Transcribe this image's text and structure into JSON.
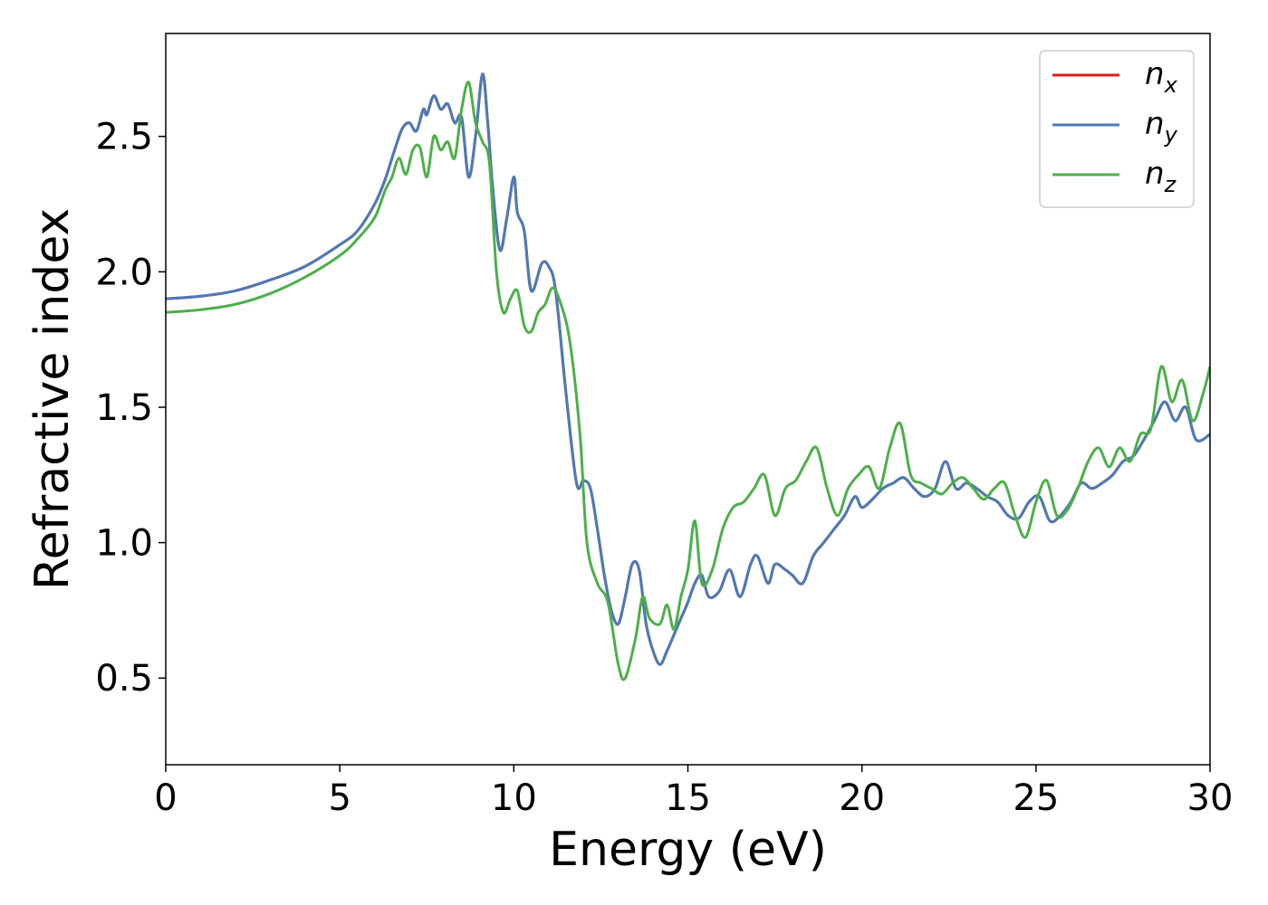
{
  "chart_data": {
    "type": "line",
    "title": "",
    "xlabel": "Energy (eV)",
    "ylabel": "Refractive index",
    "xlim": [
      0,
      30
    ],
    "ylim": [
      0.18,
      2.88
    ],
    "xticks": [
      0,
      5,
      10,
      15,
      20,
      25,
      30
    ],
    "xtick_labels": [
      "0",
      "5",
      "10",
      "15",
      "20",
      "25",
      "30"
    ],
    "yticks": [
      0.5,
      1.0,
      1.5,
      2.0,
      2.5
    ],
    "ytick_labels": [
      "0.5",
      "1.0",
      "1.5",
      "2.0",
      "2.5"
    ],
    "grid": false,
    "legend_position": "top-right",
    "series": [
      {
        "name": "n",
        "subscript": "x",
        "color": "#e41a1c",
        "x": [
          0,
          1,
          2,
          3,
          4,
          5,
          5.5,
          6,
          6.3,
          6.6,
          6.8,
          7,
          7.2,
          7.4,
          7.5,
          7.7,
          7.9,
          8.1,
          8.3,
          8.5,
          8.7,
          8.9,
          9.1,
          9.25,
          9.4,
          9.6,
          9.8,
          10,
          10.1,
          10.3,
          10.5,
          10.8,
          11,
          11.2,
          11.5,
          11.8,
          12,
          12.2,
          12.4,
          12.6,
          12.8,
          13,
          13.2,
          13.4,
          13.6,
          13.8,
          14,
          14.2,
          14.4,
          14.6,
          14.8,
          15,
          15.2,
          15.4,
          15.6,
          15.9,
          16.2,
          16.5,
          16.8,
          17,
          17.3,
          17.5,
          17.8,
          18,
          18.3,
          18.6,
          18.9,
          19.2,
          19.5,
          19.8,
          20,
          20.3,
          20.6,
          20.9,
          21.2,
          21.5,
          21.8,
          22.1,
          22.4,
          22.7,
          23,
          23.3,
          23.6,
          23.9,
          24.2,
          24.5,
          24.8,
          25.1,
          25.4,
          25.7,
          26,
          26.3,
          26.6,
          26.9,
          27.2,
          27.5,
          27.8,
          28.1,
          28.4,
          28.7,
          29,
          29.3,
          29.6,
          30
        ],
        "y": [
          1.9,
          1.91,
          1.93,
          1.97,
          2.02,
          2.1,
          2.15,
          2.25,
          2.34,
          2.46,
          2.53,
          2.55,
          2.52,
          2.6,
          2.58,
          2.65,
          2.6,
          2.62,
          2.55,
          2.57,
          2.35,
          2.5,
          2.73,
          2.55,
          2.3,
          2.08,
          2.2,
          2.35,
          2.22,
          2.15,
          1.93,
          2.03,
          2.02,
          1.93,
          1.55,
          1.22,
          1.23,
          1.2,
          1.05,
          0.88,
          0.75,
          0.7,
          0.8,
          0.92,
          0.9,
          0.7,
          0.6,
          0.55,
          0.6,
          0.66,
          0.72,
          0.78,
          0.85,
          0.88,
          0.8,
          0.82,
          0.9,
          0.8,
          0.92,
          0.95,
          0.85,
          0.92,
          0.9,
          0.88,
          0.85,
          0.95,
          1.0,
          1.05,
          1.1,
          1.17,
          1.13,
          1.16,
          1.2,
          1.22,
          1.24,
          1.2,
          1.17,
          1.2,
          1.3,
          1.2,
          1.22,
          1.2,
          1.17,
          1.15,
          1.1,
          1.09,
          1.15,
          1.17,
          1.08,
          1.1,
          1.15,
          1.22,
          1.2,
          1.22,
          1.25,
          1.3,
          1.32,
          1.38,
          1.45,
          1.52,
          1.45,
          1.5,
          1.38,
          1.4
        ],
        "line_width": 3
      },
      {
        "name": "n",
        "subscript": "y",
        "color": "#4a7bb7",
        "x": [
          0,
          1,
          2,
          3,
          4,
          5,
          5.5,
          6,
          6.3,
          6.6,
          6.8,
          7,
          7.2,
          7.4,
          7.5,
          7.7,
          7.9,
          8.1,
          8.3,
          8.5,
          8.7,
          8.9,
          9.1,
          9.25,
          9.4,
          9.6,
          9.8,
          10,
          10.1,
          10.3,
          10.5,
          10.8,
          11,
          11.2,
          11.5,
          11.8,
          12,
          12.2,
          12.4,
          12.6,
          12.8,
          13,
          13.2,
          13.4,
          13.6,
          13.8,
          14,
          14.2,
          14.4,
          14.6,
          14.8,
          15,
          15.2,
          15.4,
          15.6,
          15.9,
          16.2,
          16.5,
          16.8,
          17,
          17.3,
          17.5,
          17.8,
          18,
          18.3,
          18.6,
          18.9,
          19.2,
          19.5,
          19.8,
          20,
          20.3,
          20.6,
          20.9,
          21.2,
          21.5,
          21.8,
          22.1,
          22.4,
          22.7,
          23,
          23.3,
          23.6,
          23.9,
          24.2,
          24.5,
          24.8,
          25.1,
          25.4,
          25.7,
          26,
          26.3,
          26.6,
          26.9,
          27.2,
          27.5,
          27.8,
          28.1,
          28.4,
          28.7,
          29,
          29.3,
          29.6,
          30
        ],
        "y": [
          1.9,
          1.91,
          1.93,
          1.97,
          2.02,
          2.1,
          2.15,
          2.25,
          2.34,
          2.46,
          2.53,
          2.55,
          2.52,
          2.6,
          2.58,
          2.65,
          2.6,
          2.62,
          2.55,
          2.57,
          2.35,
          2.5,
          2.73,
          2.55,
          2.3,
          2.08,
          2.2,
          2.35,
          2.22,
          2.15,
          1.93,
          2.03,
          2.02,
          1.93,
          1.55,
          1.22,
          1.23,
          1.2,
          1.05,
          0.88,
          0.75,
          0.7,
          0.8,
          0.92,
          0.9,
          0.7,
          0.6,
          0.55,
          0.6,
          0.66,
          0.72,
          0.78,
          0.85,
          0.88,
          0.8,
          0.82,
          0.9,
          0.8,
          0.92,
          0.95,
          0.85,
          0.92,
          0.9,
          0.88,
          0.85,
          0.95,
          1.0,
          1.05,
          1.1,
          1.17,
          1.13,
          1.16,
          1.2,
          1.22,
          1.24,
          1.2,
          1.17,
          1.2,
          1.3,
          1.2,
          1.22,
          1.2,
          1.17,
          1.15,
          1.1,
          1.09,
          1.15,
          1.17,
          1.08,
          1.1,
          1.15,
          1.22,
          1.2,
          1.22,
          1.25,
          1.3,
          1.32,
          1.38,
          1.45,
          1.52,
          1.45,
          1.5,
          1.38,
          1.4
        ],
        "line_width": 3
      },
      {
        "name": "n",
        "subscript": "z",
        "color": "#4daf4a",
        "x": [
          0,
          1,
          2,
          3,
          4,
          5,
          5.5,
          6,
          6.3,
          6.5,
          6.7,
          6.9,
          7.1,
          7.3,
          7.5,
          7.7,
          7.9,
          8.1,
          8.3,
          8.5,
          8.7,
          8.9,
          9.1,
          9.3,
          9.5,
          9.7,
          9.9,
          10.1,
          10.3,
          10.5,
          10.7,
          10.9,
          11.1,
          11.3,
          11.6,
          11.9,
          12.1,
          12.4,
          12.7,
          13,
          13.2,
          13.5,
          13.7,
          13.9,
          14.2,
          14.4,
          14.6,
          14.8,
          15,
          15.2,
          15.4,
          15.7,
          16,
          16.3,
          16.6,
          16.9,
          17.2,
          17.5,
          17.8,
          18.1,
          18.4,
          18.7,
          19,
          19.3,
          19.6,
          19.9,
          20.2,
          20.5,
          20.8,
          21.1,
          21.4,
          21.7,
          22,
          22.3,
          22.6,
          22.9,
          23.2,
          23.5,
          23.8,
          24.1,
          24.4,
          24.7,
          25,
          25.3,
          25.6,
          25.9,
          26.2,
          26.5,
          26.8,
          27.1,
          27.4,
          27.7,
          28,
          28.3,
          28.6,
          28.9,
          29.2,
          29.5,
          29.8,
          30
        ],
        "y": [
          1.85,
          1.86,
          1.88,
          1.92,
          1.98,
          2.06,
          2.12,
          2.2,
          2.3,
          2.35,
          2.42,
          2.36,
          2.45,
          2.46,
          2.35,
          2.5,
          2.45,
          2.48,
          2.42,
          2.6,
          2.7,
          2.55,
          2.48,
          2.4,
          2.0,
          1.85,
          1.9,
          1.93,
          1.8,
          1.78,
          1.85,
          1.88,
          1.94,
          1.9,
          1.75,
          1.4,
          1.0,
          0.85,
          0.78,
          0.55,
          0.5,
          0.65,
          0.8,
          0.72,
          0.7,
          0.77,
          0.68,
          0.8,
          0.9,
          1.08,
          0.85,
          0.9,
          1.05,
          1.13,
          1.15,
          1.2,
          1.25,
          1.1,
          1.2,
          1.23,
          1.3,
          1.35,
          1.2,
          1.1,
          1.2,
          1.25,
          1.28,
          1.2,
          1.35,
          1.44,
          1.25,
          1.22,
          1.2,
          1.18,
          1.22,
          1.24,
          1.2,
          1.16,
          1.2,
          1.22,
          1.1,
          1.02,
          1.15,
          1.23,
          1.1,
          1.12,
          1.2,
          1.3,
          1.35,
          1.28,
          1.35,
          1.3,
          1.4,
          1.42,
          1.65,
          1.52,
          1.6,
          1.45,
          1.55,
          1.65
        ],
        "line_width": 3
      }
    ]
  }
}
